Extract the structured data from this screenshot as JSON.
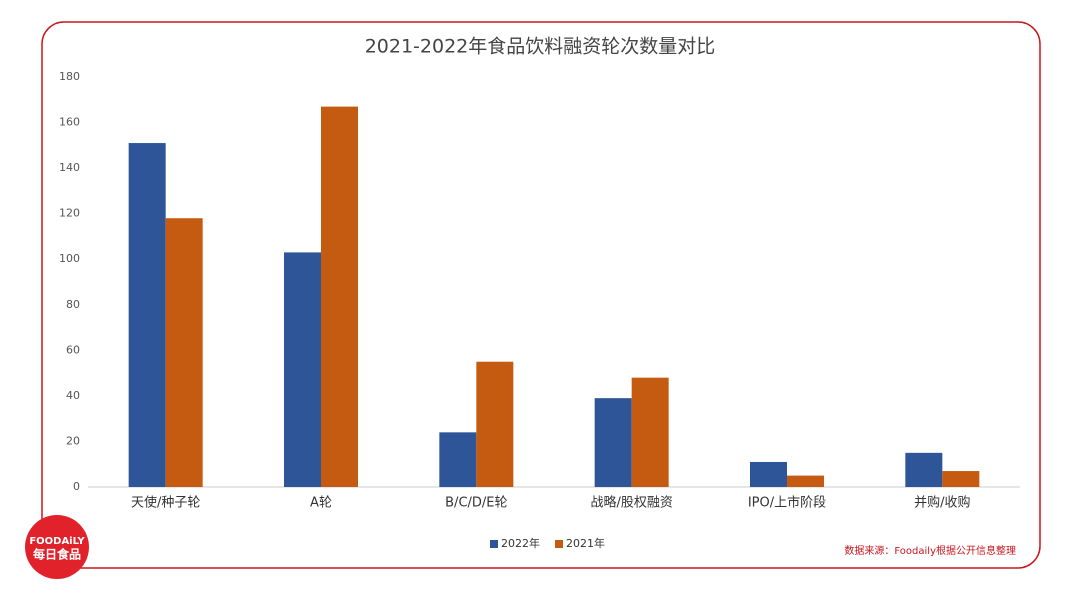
{
  "chart_data": {
    "type": "bar",
    "title": "2021-2022年食品饮料融资轮次数量对比",
    "categories": [
      "天使/种子轮",
      "A轮",
      "B/C/D/E轮",
      "战略/股权融资",
      "IPO/上市阶段",
      "并购/收购"
    ],
    "series": [
      {
        "name": "2022年",
        "color": "#2e5597",
        "values": [
          151,
          103,
          24,
          39,
          11,
          15
        ]
      },
      {
        "name": "2021年",
        "color": "#c55a11",
        "values": [
          118,
          167,
          55,
          48,
          5,
          7
        ]
      }
    ],
    "ylim": [
      0,
      180
    ],
    "yticks": [
      0,
      20,
      40,
      60,
      80,
      100,
      120,
      140,
      160,
      180
    ],
    "grid": false,
    "legend": "bottom"
  },
  "source": "数据来源：Foodaily根据公开信息整理",
  "logo": {
    "name": "FOODAiLY",
    "cn": "每日食品"
  }
}
